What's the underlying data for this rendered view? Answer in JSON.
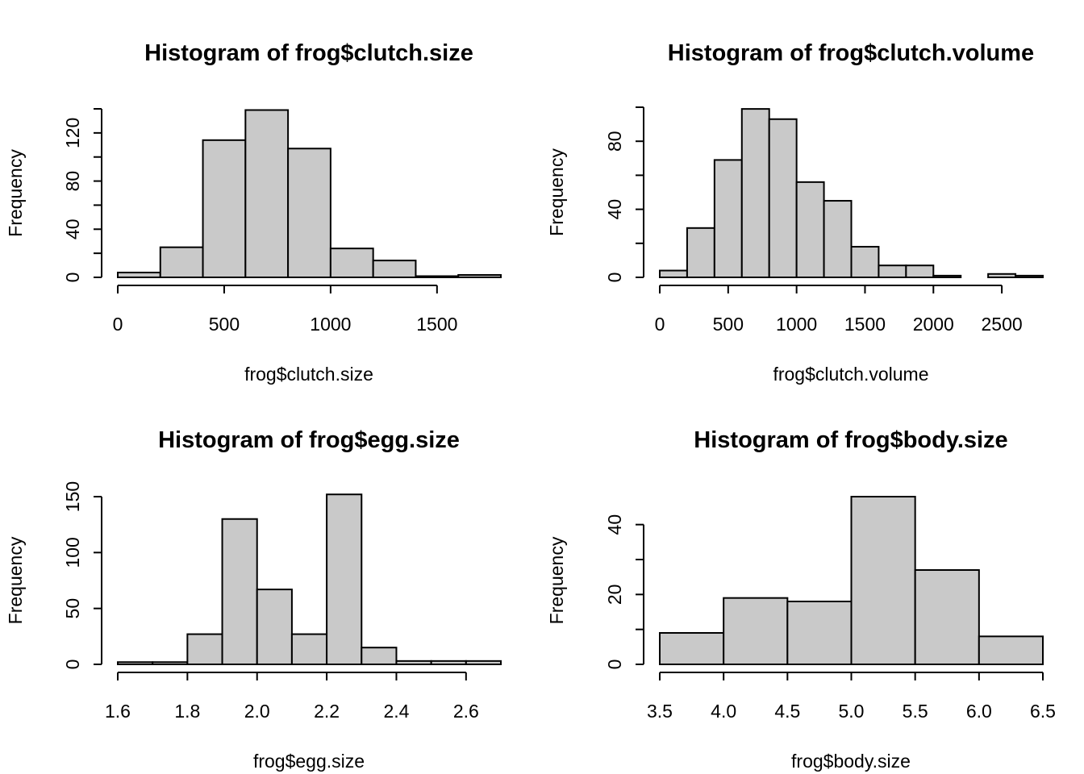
{
  "chart_data": [
    {
      "type": "bar",
      "title": "Histogram of frog$clutch.size",
      "xlabel": "frog$clutch.size",
      "ylabel": "Frequency",
      "bin_edges": [
        0,
        200,
        400,
        600,
        800,
        1000,
        1200,
        1400,
        1600,
        1800
      ],
      "values": [
        4,
        25,
        114,
        139,
        107,
        24,
        14,
        1,
        2
      ],
      "xlim": [
        0,
        1800
      ],
      "ylim": [
        0,
        140
      ],
      "x_ticks": [
        0,
        500,
        1000,
        1500
      ],
      "x_tick_labels": [
        "0",
        "500",
        "1000",
        "1500"
      ],
      "y_ticks": [
        0,
        20,
        40,
        60,
        80,
        100,
        120,
        140
      ],
      "y_tick_labels": [
        "0",
        "",
        "40",
        "",
        "80",
        "",
        "120",
        ""
      ],
      "color": "#c9c9c9"
    },
    {
      "type": "bar",
      "title": "Histogram of frog$clutch.volume",
      "xlabel": "frog$clutch.volume",
      "ylabel": "Frequency",
      "bin_edges": [
        0,
        200,
        400,
        600,
        800,
        1000,
        1200,
        1400,
        1600,
        1800,
        2000,
        2200,
        2400,
        2600,
        2800
      ],
      "values": [
        4,
        29,
        69,
        99,
        93,
        56,
        45,
        18,
        7,
        7,
        1,
        0,
        2,
        1
      ],
      "xlim": [
        0,
        2800
      ],
      "ylim": [
        0,
        100
      ],
      "x_ticks": [
        0,
        500,
        1000,
        1500,
        2000,
        2500
      ],
      "x_tick_labels": [
        "0",
        "500",
        "1000",
        "1500",
        "2000",
        "2500"
      ],
      "y_ticks": [
        0,
        20,
        40,
        60,
        80,
        100
      ],
      "y_tick_labels": [
        "0",
        "",
        "40",
        "",
        "80",
        ""
      ],
      "color": "#c9c9c9"
    },
    {
      "type": "bar",
      "title": "Histogram of frog$egg.size",
      "xlabel": "frog$egg.size",
      "ylabel": "Frequency",
      "bin_edges": [
        1.6,
        1.7,
        1.8,
        1.9,
        2.0,
        2.1,
        2.2,
        2.3,
        2.4,
        2.5,
        2.6,
        2.7
      ],
      "values": [
        2,
        2,
        27,
        130,
        67,
        27,
        152,
        15,
        3,
        3,
        3
      ],
      "xlim": [
        1.6,
        2.7
      ],
      "ylim": [
        0,
        150
      ],
      "x_ticks": [
        1.6,
        1.8,
        2.0,
        2.2,
        2.4,
        2.6
      ],
      "x_tick_labels": [
        "1.6",
        "1.8",
        "2.0",
        "2.2",
        "2.4",
        "2.6"
      ],
      "y_ticks": [
        0,
        50,
        100,
        150
      ],
      "y_tick_labels": [
        "0",
        "50",
        "100",
        "150"
      ],
      "color": "#c9c9c9"
    },
    {
      "type": "bar",
      "title": "Histogram of frog$body.size",
      "xlabel": "frog$body.size",
      "ylabel": "Frequency",
      "bin_edges": [
        3.5,
        4.0,
        4.5,
        5.0,
        5.5,
        6.0,
        6.5
      ],
      "values": [
        9,
        19,
        18,
        48,
        27,
        8
      ],
      "xlim": [
        3.5,
        6.5
      ],
      "ylim": [
        0,
        48
      ],
      "x_ticks": [
        3.5,
        4.0,
        4.5,
        5.0,
        5.5,
        6.0,
        6.5
      ],
      "x_tick_labels": [
        "3.5",
        "4.0",
        "4.5",
        "5.0",
        "5.5",
        "6.0",
        "6.5"
      ],
      "y_ticks": [
        0,
        10,
        20,
        30,
        40
      ],
      "y_tick_labels": [
        "0",
        "",
        "20",
        "",
        "40"
      ],
      "color": "#c9c9c9"
    }
  ]
}
